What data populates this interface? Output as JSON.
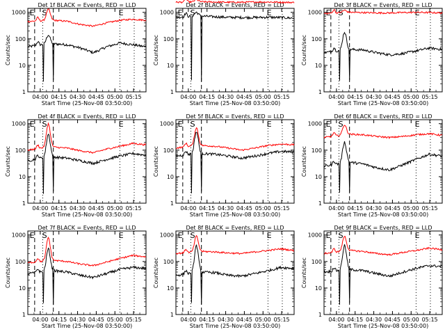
{
  "chart_data": [
    {
      "type": "line",
      "title": "Det 1f BLACK = Events, RED = LLD",
      "xlabel": "Start Time (25-Nov-08 03:50:00)",
      "ylabel": "Counts/sec",
      "yscale": "log",
      "ylim": [
        1,
        1000
      ],
      "y_ticks": [
        "1",
        "10",
        "100",
        "1000"
      ],
      "x_ticks": [
        "04:00",
        "04:15",
        "04:30",
        "04:45",
        "05:00",
        "05:15"
      ],
      "markers": [
        "E",
        "S",
        "E"
      ],
      "series": [
        {
          "color": "#000000",
          "role": "events",
          "baseline": [
            50,
            60,
            65,
            60,
            45,
            30,
            50,
            70,
            60,
            50
          ]
        },
        {
          "color": "#ff0000",
          "role": "lld",
          "baseline": [
            450,
            480,
            500,
            460,
            350,
            300,
            400,
            500,
            550,
            500
          ]
        }
      ],
      "flare_peak": {
        "black": 140,
        "red": 1300
      }
    },
    {
      "type": "line",
      "title": "Det 2f BLACK = Events, RED = LLD",
      "xlabel": "Start Time (25-Nov-08 03:50:00)",
      "ylabel": "Counts/sec",
      "yscale": "log",
      "ylim": [
        1,
        1000
      ],
      "y_ticks": [
        "1",
        "10",
        "100",
        "1000"
      ],
      "x_ticks": [
        "04:00",
        "04:15",
        "04:30",
        "04:45",
        "05:00",
        "05:15"
      ],
      "markers": [
        "E",
        "S",
        "E"
      ],
      "series": [
        {
          "color": "#000000",
          "role": "events",
          "baseline": [
            650,
            700,
            720,
            680,
            650,
            640,
            640,
            650,
            640,
            600
          ]
        },
        {
          "color": "#ff0000",
          "role": "lld",
          "baseline": [
            2400,
            2450,
            2500,
            2450,
            2400,
            2400,
            2450,
            2450,
            2400,
            2350
          ]
        }
      ],
      "flare_peak": {
        "black": 1000,
        "red": 3000
      }
    },
    {
      "type": "line",
      "title": "Det 3f BLACK = Events, RED = LLD",
      "xlabel": "Start Time (25-Nov-08 03:50:00)",
      "ylabel": "Counts/sec",
      "yscale": "log",
      "ylim": [
        1,
        1000
      ],
      "y_ticks": [
        "1",
        "10",
        "100",
        "1000"
      ],
      "x_ticks": [
        "04:00",
        "04:15",
        "04:30",
        "04:45",
        "05:00",
        "05:15"
      ],
      "markers": [
        "E",
        "S",
        "E"
      ],
      "series": [
        {
          "color": "#000000",
          "role": "events",
          "baseline": [
            30,
            35,
            40,
            38,
            30,
            25,
            28,
            35,
            45,
            40
          ]
        },
        {
          "color": "#ff0000",
          "role": "lld",
          "baseline": [
            900,
            950,
            1000,
            980,
            950,
            950,
            980,
            1000,
            980,
            950
          ]
        }
      ],
      "flare_peak": {
        "black": 180,
        "red": 1200
      }
    },
    {
      "type": "line",
      "title": "Det 4f BLACK = Events, RED = LLD",
      "xlabel": "Start Time (25-Nov-08 03:50:00)",
      "ylabel": "Counts/sec",
      "yscale": "log",
      "ylim": [
        1,
        1000
      ],
      "y_ticks": [
        "1",
        "10",
        "100",
        "1000"
      ],
      "x_ticks": [
        "04:00",
        "04:15",
        "04:30",
        "04:45",
        "05:00",
        "05:15"
      ],
      "markers": [
        "E",
        "S",
        "E"
      ],
      "series": [
        {
          "color": "#000000",
          "role": "events",
          "baseline": [
            40,
            50,
            55,
            50,
            40,
            32,
            45,
            60,
            75,
            65
          ]
        },
        {
          "color": "#ff0000",
          "role": "lld",
          "baseline": [
            100,
            120,
            130,
            120,
            95,
            80,
            110,
            140,
            180,
            160
          ]
        }
      ],
      "flare_peak": {
        "black": 400,
        "red": 1000
      }
    },
    {
      "type": "line",
      "title": "Det 5f BLACK = Events, RED = LLD",
      "xlabel": "Start Time (25-Nov-08 03:50:00)",
      "ylabel": "Counts/sec",
      "yscale": "log",
      "ylim": [
        1,
        1000
      ],
      "y_ticks": [
        "1",
        "10",
        "100",
        "1000"
      ],
      "x_ticks": [
        "04:00",
        "04:15",
        "04:30",
        "04:45",
        "05:00",
        "05:15"
      ],
      "markers": [
        "E",
        "S",
        "E"
      ],
      "series": [
        {
          "color": "#000000",
          "role": "events",
          "baseline": [
            60,
            70,
            75,
            70,
            60,
            50,
            60,
            75,
            90,
            85
          ]
        },
        {
          "color": "#ff0000",
          "role": "lld",
          "baseline": [
            120,
            140,
            150,
            140,
            120,
            100,
            120,
            150,
            170,
            160
          ]
        }
      ],
      "flare_peak": {
        "black": 500,
        "red": 700
      }
    },
    {
      "type": "line",
      "title": "Det 6f BLACK = Events, RED = LLD",
      "xlabel": "Start Time (25-Nov-08 03:50:00)",
      "ylabel": "Counts/sec",
      "yscale": "log",
      "ylim": [
        1,
        1000
      ],
      "y_ticks": [
        "1",
        "10",
        "100",
        "1000"
      ],
      "x_ticks": [
        "04:00",
        "04:15",
        "04:30",
        "04:45",
        "05:00",
        "05:15"
      ],
      "markers": [
        "E",
        "S",
        "E"
      ],
      "series": [
        {
          "color": "#000000",
          "role": "events",
          "baseline": [
            25,
            30,
            35,
            30,
            22,
            18,
            28,
            45,
            70,
            60
          ]
        },
        {
          "color": "#ff0000",
          "role": "lld",
          "baseline": [
            300,
            350,
            400,
            380,
            330,
            300,
            330,
            380,
            420,
            360
          ]
        }
      ],
      "flare_peak": {
        "black": 200,
        "red": 900
      }
    },
    {
      "type": "line",
      "title": "Det 7f BLACK = Events, RED = LLD",
      "xlabel": "Start Time (25-Nov-08 03:50:00)",
      "ylabel": "Counts/sec",
      "yscale": "log",
      "ylim": [
        1,
        1000
      ],
      "y_ticks": [
        "1",
        "10",
        "100",
        "1000"
      ],
      "x_ticks": [
        "04:00",
        "04:15",
        "04:30",
        "04:45",
        "05:00",
        "05:15"
      ],
      "markers": [
        "E",
        "S",
        "E"
      ],
      "series": [
        {
          "color": "#000000",
          "role": "events",
          "baseline": [
            35,
            40,
            45,
            40,
            30,
            25,
            35,
            50,
            60,
            55
          ]
        },
        {
          "color": "#ff0000",
          "role": "lld",
          "baseline": [
            90,
            100,
            110,
            100,
            80,
            70,
            95,
            130,
            170,
            150
          ]
        }
      ],
      "flare_peak": {
        "black": 300,
        "red": 800
      }
    },
    {
      "type": "line",
      "title": "Det 8f BLACK = Events, RED = LLD",
      "xlabel": "Start Time (25-Nov-08 03:50:00)",
      "ylabel": "Counts/sec",
      "yscale": "log",
      "ylim": [
        1,
        1000
      ],
      "y_ticks": [
        "1",
        "10",
        "100",
        "1000"
      ],
      "x_ticks": [
        "04:00",
        "04:15",
        "04:30",
        "04:45",
        "05:00",
        "05:15"
      ],
      "markers": [
        "E",
        "S",
        "E"
      ],
      "series": [
        {
          "color": "#000000",
          "role": "events",
          "baseline": [
            30,
            35,
            40,
            38,
            30,
            28,
            35,
            45,
            60,
            55
          ]
        },
        {
          "color": "#ff0000",
          "role": "lld",
          "baseline": [
            200,
            220,
            240,
            230,
            210,
            200,
            230,
            260,
            300,
            260
          ]
        }
      ],
      "flare_peak": {
        "black": 400,
        "red": 900
      }
    },
    {
      "type": "line",
      "title": "Det 9f BLACK = Events, RED = LLD",
      "xlabel": "Start Time (25-Nov-08 03:50:00)",
      "ylabel": "Counts/sec",
      "yscale": "log",
      "ylim": [
        1,
        1000
      ],
      "y_ticks": [
        "1",
        "10",
        "100",
        "1000"
      ],
      "x_ticks": [
        "04:00",
        "04:15",
        "04:30",
        "04:45",
        "05:00",
        "05:15"
      ],
      "markers": [
        "E",
        "S",
        "E"
      ],
      "series": [
        {
          "color": "#000000",
          "role": "events",
          "baseline": [
            40,
            45,
            50,
            45,
            35,
            28,
            40,
            55,
            70,
            65
          ]
        },
        {
          "color": "#ff0000",
          "role": "lld",
          "baseline": [
            200,
            230,
            260,
            240,
            200,
            180,
            220,
            260,
            320,
            280
          ]
        }
      ],
      "flare_peak": {
        "black": 400,
        "red": 900
      }
    }
  ]
}
